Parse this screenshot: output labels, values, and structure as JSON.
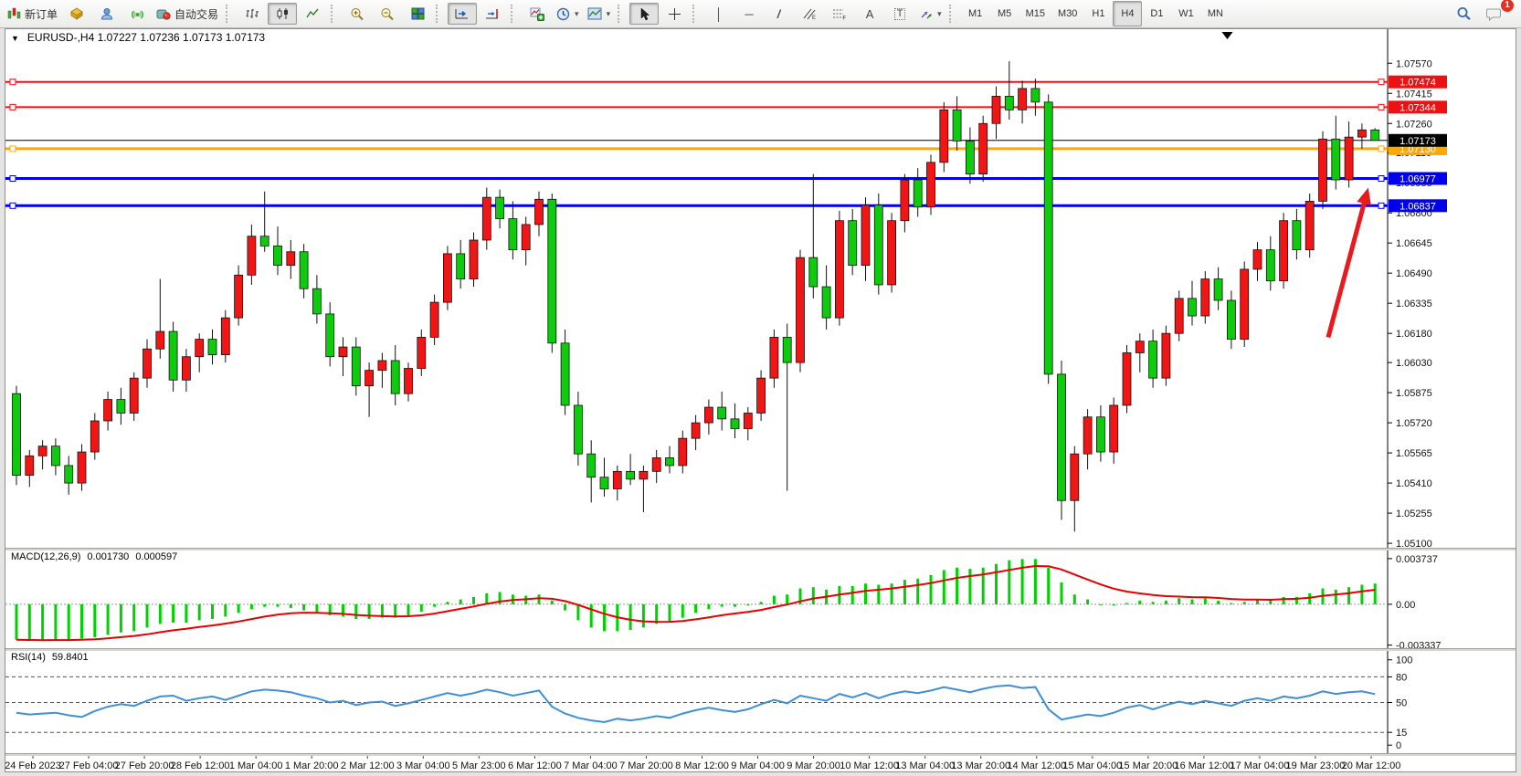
{
  "icons": {
    "caret_down": "▾",
    "title_marker": "▼",
    "vline_glyph": "│",
    "hline_glyph": "─",
    "trendline_glyph": "/",
    "text_tool": "A",
    "label_tool": "T"
  },
  "toolbar": {
    "new_order_label": "新订单",
    "auto_trading_label": "自动交易",
    "timeframes": [
      "M1",
      "M5",
      "M15",
      "M30",
      "H1",
      "H4",
      "D1",
      "W1",
      "MN"
    ],
    "active_timeframe": "H4",
    "notification_count": "1"
  },
  "chart_data": {
    "type": "candlestick",
    "symbol_title": "EURUSD-,H4  1.07227 1.07236 1.07173 1.07173",
    "up_color": "#f21515",
    "down_color": "#0ecb0e",
    "wick_color": "#111111",
    "current_price": 1.07173,
    "ylim": [
      1.05077,
      1.07745
    ],
    "price_ticks": [
      1.0757,
      1.07415,
      1.0726,
      1.0711,
      1.06955,
      1.068,
      1.06645,
      1.0649,
      1.06335,
      1.0618,
      1.0603,
      1.05875,
      1.0572,
      1.05565,
      1.0541,
      1.05255,
      1.051
    ],
    "hlines": [
      {
        "price": 1.07474,
        "label": "1.07474",
        "color": "#ee1111",
        "width": 2
      },
      {
        "price": 1.07344,
        "label": "1.07344",
        "color": "#ee1111",
        "width": 2
      },
      {
        "price": 1.0713,
        "label": "1.07130",
        "color": "#ffa800",
        "width": 3
      },
      {
        "price": 1.06977,
        "label": "1.06977",
        "color": "#0000ee",
        "width": 3
      },
      {
        "price": 1.06837,
        "label": "1.06837",
        "color": "#0000ee",
        "width": 3
      }
    ],
    "current_price_label": "1.07173",
    "time_labels": [
      "24 Feb 2023",
      "27 Feb 04:00",
      "27 Feb 20:00",
      "28 Feb 12:00",
      "1 Mar 04:00",
      "1 Mar 20:00",
      "2 Mar 12:00",
      "3 Mar 04:00",
      "5 Mar 23:00",
      "6 Mar 12:00",
      "7 Mar 04:00",
      "7 Mar 20:00",
      "8 Mar 12:00",
      "9 Mar 04:00",
      "9 Mar 20:00",
      "10 Mar 12:00",
      "13 Mar 04:00",
      "13 Mar 20:00",
      "14 Mar 12:00",
      "15 Mar 04:00",
      "15 Mar 20:00",
      "16 Mar 12:00",
      "17 Mar 04:00",
      "19 Mar 23:00",
      "20 Mar 12:00"
    ],
    "candles": [
      [
        1.0587,
        1.0591,
        1.054,
        1.0545
      ],
      [
        1.0545,
        1.0558,
        1.0539,
        1.0555
      ],
      [
        1.0555,
        1.0563,
        1.0548,
        1.056
      ],
      [
        1.056,
        1.0564,
        1.0545,
        1.055
      ],
      [
        1.055,
        1.0555,
        1.0535,
        1.0541
      ],
      [
        1.0541,
        1.0561,
        1.0537,
        1.0557
      ],
      [
        1.0557,
        1.0577,
        1.0553,
        1.0573
      ],
      [
        1.0573,
        1.0588,
        1.0568,
        1.0584
      ],
      [
        1.0584,
        1.059,
        1.0571,
        1.0577
      ],
      [
        1.0577,
        1.0598,
        1.0573,
        1.0595
      ],
      [
        1.0595,
        1.0615,
        1.059,
        1.061
      ],
      [
        1.061,
        1.0646,
        1.0605,
        1.0619
      ],
      [
        1.0619,
        1.0624,
        1.0588,
        1.0594
      ],
      [
        1.0594,
        1.061,
        1.0588,
        1.0606
      ],
      [
        1.0606,
        1.0618,
        1.0598,
        1.0615
      ],
      [
        1.0615,
        1.062,
        1.0602,
        1.0607
      ],
      [
        1.0607,
        1.063,
        1.0603,
        1.0626
      ],
      [
        1.0626,
        1.0653,
        1.0622,
        1.0648
      ],
      [
        1.0648,
        1.0674,
        1.0643,
        1.0668
      ],
      [
        1.0668,
        1.0691,
        1.066,
        1.0663
      ],
      [
        1.0663,
        1.0673,
        1.0648,
        1.0653
      ],
      [
        1.0653,
        1.0666,
        1.0646,
        1.066
      ],
      [
        1.066,
        1.0664,
        1.0636,
        1.0641
      ],
      [
        1.0641,
        1.0648,
        1.0623,
        1.0628
      ],
      [
        1.0628,
        1.0634,
        1.0601,
        1.0606
      ],
      [
        1.0606,
        1.0616,
        1.0596,
        1.0611
      ],
      [
        1.0611,
        1.0616,
        1.0586,
        1.0591
      ],
      [
        1.0591,
        1.0603,
        1.0575,
        1.0599
      ],
      [
        1.0599,
        1.0608,
        1.059,
        1.0604
      ],
      [
        1.0604,
        1.0612,
        1.0581,
        1.0587
      ],
      [
        1.0587,
        1.0603,
        1.0583,
        1.06
      ],
      [
        1.06,
        1.062,
        1.0596,
        1.0616
      ],
      [
        1.0616,
        1.0638,
        1.0612,
        1.0634
      ],
      [
        1.0634,
        1.0663,
        1.063,
        1.0659
      ],
      [
        1.0659,
        1.0666,
        1.0641,
        1.0646
      ],
      [
        1.0646,
        1.067,
        1.0642,
        1.0666
      ],
      [
        1.0666,
        1.0693,
        1.0661,
        1.0688
      ],
      [
        1.0688,
        1.0692,
        1.0672,
        1.0677
      ],
      [
        1.0677,
        1.0686,
        1.0656,
        1.0661
      ],
      [
        1.0661,
        1.0678,
        1.0653,
        1.0674
      ],
      [
        1.0674,
        1.0691,
        1.0668,
        1.0687
      ],
      [
        1.0687,
        1.069,
        1.0608,
        1.0613
      ],
      [
        1.0613,
        1.062,
        1.0576,
        1.0581
      ],
      [
        1.0581,
        1.0588,
        1.055,
        1.0556
      ],
      [
        1.0556,
        1.0563,
        1.0531,
        1.0544
      ],
      [
        1.0544,
        1.0554,
        1.0534,
        1.0538
      ],
      [
        1.0538,
        1.055,
        1.0532,
        1.0547
      ],
      [
        1.0547,
        1.0556,
        1.054,
        1.0543
      ],
      [
        1.0543,
        1.055,
        1.0526,
        1.0547
      ],
      [
        1.0547,
        1.0558,
        1.0541,
        1.0554
      ],
      [
        1.0554,
        1.056,
        1.0546,
        1.055
      ],
      [
        1.055,
        1.0568,
        1.0546,
        1.0564
      ],
      [
        1.0564,
        1.0576,
        1.0558,
        1.0572
      ],
      [
        1.0572,
        1.0584,
        1.0566,
        1.058
      ],
      [
        1.058,
        1.0588,
        1.0568,
        1.0574
      ],
      [
        1.0574,
        1.0582,
        1.0564,
        1.0569
      ],
      [
        1.0569,
        1.058,
        1.0563,
        1.0577
      ],
      [
        1.0577,
        1.0599,
        1.0573,
        1.0595
      ],
      [
        1.0595,
        1.062,
        1.059,
        1.0616
      ],
      [
        1.0616,
        1.0623,
        1.0537,
        1.0603
      ],
      [
        1.0603,
        1.0661,
        1.0598,
        1.0657
      ],
      [
        1.0657,
        1.07,
        1.0636,
        1.0642
      ],
      [
        1.0642,
        1.0653,
        1.062,
        1.0626
      ],
      [
        1.0626,
        1.0681,
        1.0622,
        1.0676
      ],
      [
        1.0676,
        1.0682,
        1.0648,
        1.0653
      ],
      [
        1.0653,
        1.0688,
        1.0645,
        1.0684
      ],
      [
        1.0684,
        1.069,
        1.0638,
        1.0643
      ],
      [
        1.0643,
        1.068,
        1.0639,
        1.0676
      ],
      [
        1.0676,
        1.07,
        1.067,
        1.0697
      ],
      [
        1.0697,
        1.0703,
        1.0678,
        1.0683
      ],
      [
        1.0683,
        1.071,
        1.0679,
        1.0706
      ],
      [
        1.0706,
        1.0737,
        1.0701,
        1.0733
      ],
      [
        1.0733,
        1.074,
        1.0712,
        1.0717
      ],
      [
        1.0717,
        1.0724,
        1.0695,
        1.07
      ],
      [
        1.07,
        1.073,
        1.0696,
        1.0726
      ],
      [
        1.0726,
        1.0745,
        1.0718,
        1.074
      ],
      [
        1.074,
        1.0758,
        1.0728,
        1.0733
      ],
      [
        1.0733,
        1.0748,
        1.0726,
        1.0744
      ],
      [
        1.0744,
        1.0749,
        1.073,
        1.0737
      ],
      [
        1.0737,
        1.0741,
        1.0592,
        1.0597
      ],
      [
        1.0597,
        1.0604,
        1.0522,
        1.0532
      ],
      [
        1.0532,
        1.056,
        1.0516,
        1.0556
      ],
      [
        1.0556,
        1.0579,
        1.0548,
        1.0575
      ],
      [
        1.0575,
        1.0581,
        1.0552,
        1.0557
      ],
      [
        1.0557,
        1.0585,
        1.0551,
        1.0581
      ],
      [
        1.0581,
        1.0612,
        1.0577,
        1.0608
      ],
      [
        1.0608,
        1.0618,
        1.0598,
        1.0614
      ],
      [
        1.0614,
        1.062,
        1.059,
        1.0595
      ],
      [
        1.0595,
        1.0622,
        1.0591,
        1.0618
      ],
      [
        1.0618,
        1.064,
        1.0614,
        1.0636
      ],
      [
        1.0636,
        1.0645,
        1.0622,
        1.0627
      ],
      [
        1.0627,
        1.065,
        1.0623,
        1.0646
      ],
      [
        1.0646,
        1.0652,
        1.063,
        1.0635
      ],
      [
        1.0635,
        1.064,
        1.061,
        1.0615
      ],
      [
        1.0615,
        1.0655,
        1.0611,
        1.0651
      ],
      [
        1.0651,
        1.0665,
        1.0645,
        1.0661
      ],
      [
        1.0661,
        1.0668,
        1.064,
        1.0645
      ],
      [
        1.0645,
        1.068,
        1.0641,
        1.0676
      ],
      [
        1.0676,
        1.0682,
        1.0656,
        1.0661
      ],
      [
        1.0661,
        1.069,
        1.0657,
        1.0686
      ],
      [
        1.0686,
        1.0722,
        1.0682,
        1.0718
      ],
      [
        1.0718,
        1.073,
        1.0692,
        1.0697
      ],
      [
        1.0697,
        1.0727,
        1.0693,
        1.0719
      ],
      [
        1.0719,
        1.0726,
        1.0713,
        1.07227
      ],
      [
        1.07227,
        1.07236,
        1.07173,
        1.07173
      ]
    ],
    "macd": {
      "label": "MACD(12,26,9)",
      "value_main": "0.001730",
      "value_signal": "0.000597",
      "ticks": [
        "0.003737",
        "0.00",
        "-0.003337"
      ],
      "tick_values": [
        0.003737,
        0,
        -0.003337
      ],
      "ylim": [
        -0.00359,
        0.0044
      ],
      "histogram_color": "#00d200",
      "signal_color": "#e60000",
      "histogram": [
        -0.0029,
        -0.003,
        -0.003,
        -0.0029,
        -0.0029,
        -0.0028,
        -0.0027,
        -0.0025,
        -0.0023,
        -0.0022,
        -0.0019,
        -0.0016,
        -0.0015,
        -0.0015,
        -0.0013,
        -0.0012,
        -0.001,
        -0.0007,
        -0.0004,
        -0.0002,
        -0.0002,
        -0.0003,
        -0.0005,
        -0.0007,
        -0.0009,
        -0.001,
        -0.0012,
        -0.0012,
        -0.0011,
        -0.0011,
        -0.0009,
        -0.0006,
        -0.0002,
        0.0002,
        0.0004,
        0.0006,
        0.0009,
        0.001,
        0.0008,
        0.0007,
        0.0008,
        0.0003,
        -0.0005,
        -0.0013,
        -0.0019,
        -0.0022,
        -0.0022,
        -0.0021,
        -0.0019,
        -0.0016,
        -0.0014,
        -0.0011,
        -0.0007,
        -0.0004,
        -0.0002,
        -0.0002,
        -0.0001,
        0.0002,
        0.0007,
        0.0008,
        0.0013,
        0.0014,
        0.0012,
        0.0015,
        0.0015,
        0.0017,
        0.0016,
        0.0017,
        0.002,
        0.0021,
        0.0024,
        0.0028,
        0.003,
        0.0029,
        0.003,
        0.0033,
        0.0036,
        0.0037,
        0.0037,
        0.003,
        0.0018,
        0.0008,
        0.0004,
        0.0,
        -0.0001,
        0.0001,
        0.0003,
        0.0002,
        0.0003,
        0.0005,
        0.0004,
        0.0005,
        0.0003,
        0.0001,
        0.0002,
        0.0004,
        0.0003,
        0.0006,
        0.0006,
        0.0009,
        0.0013,
        0.0012,
        0.0014,
        0.0016,
        0.0017
      ]
    },
    "rsi": {
      "label": "RSI(14)",
      "value": "59.8401",
      "ticks": [
        "100",
        "80",
        "50",
        "15",
        "0"
      ],
      "tick_values": [
        100,
        80,
        50,
        15,
        0
      ],
      "levels": [
        80,
        50,
        15
      ],
      "ylim": [
        -9.4,
        110.4
      ],
      "line_color": "#3f8fd6",
      "values": [
        38,
        36,
        37,
        38,
        35,
        33,
        40,
        45,
        48,
        46,
        52,
        57,
        58,
        52,
        55,
        57,
        53,
        58,
        63,
        65,
        64,
        62,
        58,
        55,
        50,
        52,
        47,
        50,
        51,
        46,
        49,
        53,
        57,
        61,
        58,
        61,
        65,
        62,
        58,
        61,
        64,
        45,
        37,
        32,
        29,
        27,
        31,
        29,
        31,
        34,
        32,
        37,
        41,
        44,
        41,
        39,
        42,
        48,
        53,
        49,
        58,
        55,
        52,
        60,
        56,
        61,
        55,
        60,
        63,
        61,
        64,
        68,
        65,
        62,
        66,
        69,
        70,
        67,
        68,
        42,
        30,
        33,
        36,
        34,
        38,
        44,
        47,
        42,
        47,
        51,
        48,
        52,
        49,
        46,
        52,
        55,
        52,
        57,
        55,
        58,
        63,
        60,
        62,
        63,
        59.84
      ]
    },
    "annotations": {
      "arrow": {
        "x1_frac": 0.957,
        "price1": 1.0616,
        "x2_frac": 0.986,
        "price2": 1.0693,
        "color": "#e8191f"
      },
      "top_marker_x_frac": 0.884
    }
  }
}
